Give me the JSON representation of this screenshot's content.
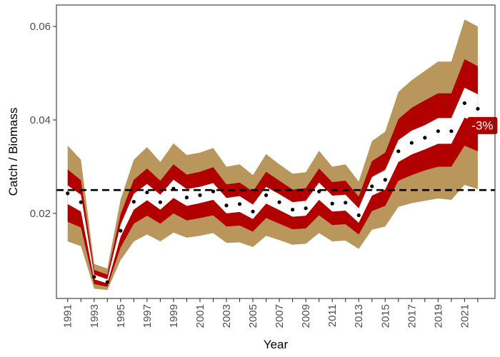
{
  "chart_data": {
    "type": "area",
    "xlabel": "Year",
    "ylabel": "Catch / Biomass",
    "x_tick_labels": [
      "1991",
      "1993",
      "1995",
      "1997",
      "1999",
      "2001",
      "2003",
      "2005",
      "2007",
      "2009",
      "2011",
      "2013",
      "2015",
      "2017",
      "2019",
      "2021"
    ],
    "y_tick_labels": [
      "0.02",
      "0.04",
      "0.06"
    ],
    "x_ticks": [
      1991,
      1992,
      1993,
      1994,
      1995,
      1996,
      1997,
      1998,
      1999,
      2000,
      2001,
      2002,
      2003,
      2004,
      2005,
      2006,
      2007,
      2008,
      2009,
      2010,
      2011,
      2012,
      2013,
      2014,
      2015,
      2016,
      2017,
      2018,
      2019,
      2020,
      2021,
      2022
    ],
    "y_ticks": [
      0.02,
      0.04,
      0.06
    ],
    "xlim": [
      1990.15,
      2023.3
    ],
    "ylim": [
      0.0018,
      0.0646
    ],
    "grid": false,
    "reference_line": {
      "y": 0.025,
      "style": "dashed",
      "color": "#000000"
    },
    "annotation": {
      "text": "-3%",
      "x": 2022.35,
      "y": 0.0388,
      "color": "#b20000"
    },
    "colors": {
      "outer_band": "#b8965c",
      "middle_band": "#b20000",
      "inner_band": "#ffffff",
      "points": "#000000"
    },
    "years": [
      1991,
      1992,
      1993,
      1994,
      1995,
      1996,
      1997,
      1998,
      1999,
      2000,
      2001,
      2002,
      2003,
      2004,
      2005,
      2006,
      2007,
      2008,
      2009,
      2010,
      2011,
      2012,
      2013,
      2014,
      2015,
      2016,
      2017,
      2018,
      2019,
      2020,
      2021,
      2022
    ],
    "median": [
      0.0243,
      0.0224,
      0.0064,
      0.0053,
      0.0163,
      0.0225,
      0.0245,
      0.0224,
      0.0253,
      0.0234,
      0.0239,
      0.0247,
      0.0217,
      0.022,
      0.0204,
      0.0239,
      0.0224,
      0.0208,
      0.0211,
      0.0247,
      0.0221,
      0.0223,
      0.0196,
      0.0258,
      0.0272,
      0.0333,
      0.0351,
      0.0362,
      0.0376,
      0.0376,
      0.0436,
      0.0424
    ],
    "outer_lower": [
      0.014,
      0.013,
      0.0039,
      0.0036,
      0.01,
      0.014,
      0.0155,
      0.014,
      0.0159,
      0.0148,
      0.0152,
      0.0158,
      0.0137,
      0.0138,
      0.0128,
      0.0152,
      0.0143,
      0.0133,
      0.0135,
      0.0158,
      0.014,
      0.0142,
      0.0124,
      0.0165,
      0.0172,
      0.0214,
      0.0222,
      0.0227,
      0.0232,
      0.0229,
      0.0261,
      0.0252
    ],
    "outer_upper": [
      0.0345,
      0.0315,
      0.0092,
      0.0082,
      0.023,
      0.0315,
      0.0342,
      0.031,
      0.035,
      0.0325,
      0.033,
      0.034,
      0.03,
      0.0305,
      0.0282,
      0.0327,
      0.0305,
      0.0285,
      0.0288,
      0.0334,
      0.03,
      0.0305,
      0.0268,
      0.0355,
      0.0375,
      0.046,
      0.0485,
      0.0505,
      0.0525,
      0.0525,
      0.0615,
      0.06
    ],
    "middle_lower": [
      0.0182,
      0.017,
      0.0049,
      0.0043,
      0.0127,
      0.0178,
      0.0195,
      0.0178,
      0.02,
      0.0185,
      0.019,
      0.0196,
      0.0172,
      0.0174,
      0.0161,
      0.019,
      0.0178,
      0.0166,
      0.0168,
      0.0196,
      0.0175,
      0.0177,
      0.0155,
      0.0205,
      0.0216,
      0.027,
      0.0282,
      0.0292,
      0.03,
      0.03,
      0.0345,
      0.0333
    ],
    "middle_upper": [
      0.0294,
      0.0271,
      0.0079,
      0.0069,
      0.0198,
      0.0272,
      0.0296,
      0.027,
      0.0305,
      0.0283,
      0.0289,
      0.0299,
      0.0262,
      0.0266,
      0.0247,
      0.0289,
      0.027,
      0.0251,
      0.0254,
      0.0296,
      0.0267,
      0.027,
      0.0236,
      0.0312,
      0.033,
      0.0402,
      0.0426,
      0.0442,
      0.0457,
      0.0457,
      0.053,
      0.0515
    ],
    "inner_lower": [
      0.022,
      0.0204,
      0.0059,
      0.005,
      0.015,
      0.0208,
      0.0228,
      0.0208,
      0.0233,
      0.0216,
      0.0222,
      0.0229,
      0.02,
      0.0203,
      0.0188,
      0.0221,
      0.0207,
      0.0193,
      0.0195,
      0.0229,
      0.0204,
      0.0206,
      0.018,
      0.0238,
      0.0251,
      0.031,
      0.0326,
      0.0337,
      0.0349,
      0.0349,
      0.0405,
      0.0393
    ],
    "inner_upper": [
      0.026,
      0.024,
      0.0069,
      0.0059,
      0.0176,
      0.0242,
      0.0263,
      0.024,
      0.0272,
      0.0252,
      0.0257,
      0.0265,
      0.0233,
      0.0237,
      0.0219,
      0.0257,
      0.0241,
      0.0224,
      0.0227,
      0.0266,
      0.0238,
      0.024,
      0.0211,
      0.0278,
      0.0293,
      0.0357,
      0.0377,
      0.0389,
      0.0404,
      0.0404,
      0.0469,
      0.0455
    ]
  }
}
